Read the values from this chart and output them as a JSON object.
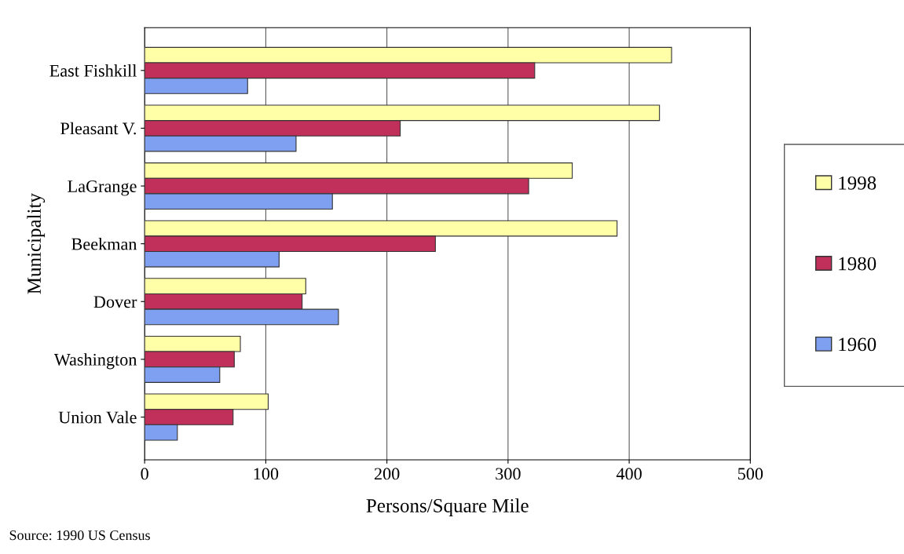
{
  "chart_data": {
    "type": "bar",
    "orientation": "horizontal",
    "categories": [
      "East Fishkill",
      "Pleasant V.",
      "LaGrange",
      "Beekman",
      "Dover",
      "Washington",
      "Union Vale"
    ],
    "series": [
      {
        "name": "1998",
        "color": "#ffffa8",
        "values": [
          435,
          425,
          353,
          390,
          133,
          79,
          102
        ]
      },
      {
        "name": "1980",
        "color": "#c0305a",
        "values": [
          322,
          211,
          317,
          240,
          130,
          74,
          73
        ]
      },
      {
        "name": "1960",
        "color": "#7f9ff0",
        "values": [
          85,
          125,
          155,
          111,
          160,
          62,
          27
        ]
      }
    ],
    "xlabel": "Persons/Square Mile",
    "ylabel": "Municipality",
    "xlim": [
      0,
      500
    ],
    "xticks": [
      0,
      100,
      200,
      300,
      400,
      500
    ],
    "grid": "x",
    "legend": "right",
    "annotations": [
      "Source: 1990 US Census"
    ]
  }
}
